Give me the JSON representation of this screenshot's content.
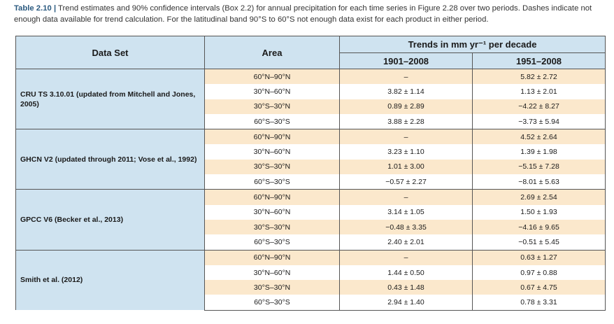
{
  "caption": {
    "label": "Table 2.10",
    "separator": "|",
    "text": " Trend estimates and 90% confidence intervals (Box 2.2) for annual precipitation for each time series in Figure 2.28 over two periods. Dashes indicate not enough data available for trend calculation. For the latitudinal band 90°S to 60°S not enough data exist for each product in either period."
  },
  "table": {
    "headers": {
      "data_set": "Data Set",
      "area": "Area",
      "trends": "Trends in mm yr⁻¹ per decade",
      "period1": "1901–2008",
      "period2": "1951–2008"
    },
    "groups": [
      {
        "name": "CRU TS 3.10.01 (updated from Mitchell and Jones, 2005)",
        "rows": [
          {
            "area": "60°N–90°N",
            "p1": "–",
            "p2": "5.82 ± 2.72"
          },
          {
            "area": "30°N–60°N",
            "p1": "3.82 ± 1.14",
            "p2": "1.13 ± 2.01"
          },
          {
            "area": "30°S–30°N",
            "p1": "0.89 ± 2.89",
            "p2": "−4.22 ± 8.27"
          },
          {
            "area": "60°S–30°S",
            "p1": "3.88 ± 2.28",
            "p2": "−3.73 ± 5.94"
          }
        ]
      },
      {
        "name": "GHCN V2 (updated through 2011; Vose et al., 1992)",
        "rows": [
          {
            "area": "60°N–90°N",
            "p1": "–",
            "p2": "4.52 ± 2.64"
          },
          {
            "area": "30°N–60°N",
            "p1": "3.23 ± 1.10",
            "p2": "1.39 ± 1.98"
          },
          {
            "area": "30°S–30°N",
            "p1": "1.01 ± 3.00",
            "p2": "−5.15 ± 7.28"
          },
          {
            "area": "60°S–30°S",
            "p1": "−0.57 ± 2.27",
            "p2": "−8.01 ± 5.63"
          }
        ]
      },
      {
        "name": "GPCC V6 (Becker et al., 2013)",
        "rows": [
          {
            "area": "60°N–90°N",
            "p1": "–",
            "p2": "2.69 ± 2.54"
          },
          {
            "area": "30°N–60°N",
            "p1": "3.14 ± 1.05",
            "p2": "1.50 ± 1.93"
          },
          {
            "area": "30°S–30°N",
            "p1": "−0.48 ± 3.35",
            "p2": "−4.16 ± 9.65"
          },
          {
            "area": "60°S–30°S",
            "p1": "2.40 ± 2.01",
            "p2": "−0.51 ± 5.45"
          }
        ]
      },
      {
        "name": "Smith et al. (2012)",
        "rows": [
          {
            "area": "60°N–90°N",
            "p1": "–",
            "p2": "0.63 ± 1.27"
          },
          {
            "area": "30°N–60°N",
            "p1": "1.44 ± 0.50",
            "p2": "0.97 ± 0.88"
          },
          {
            "area": "30°S–30°N",
            "p1": "0.43 ± 1.48",
            "p2": "0.67 ± 4.75"
          },
          {
            "area": "60°S–30°S",
            "p1": "2.94 ± 1.40",
            "p2": "0.78 ± 3.31"
          }
        ]
      }
    ]
  },
  "colors": {
    "header_bg": "#cfe3f0",
    "alt_row_bg": "#fbe8cc",
    "caption_label": "#2b5a80"
  }
}
